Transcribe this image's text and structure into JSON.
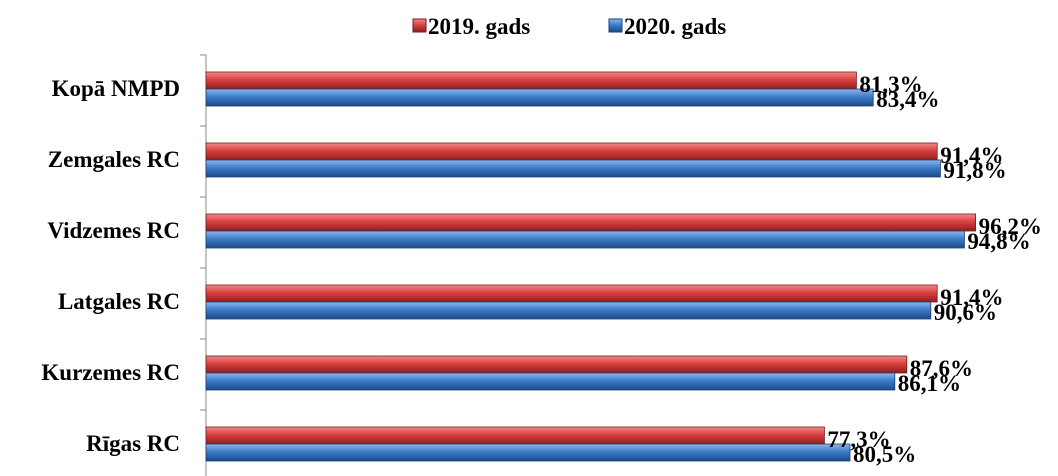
{
  "chart_data": {
    "type": "bar",
    "orientation": "horizontal",
    "categories": [
      "Kopā NMPD",
      "Zemgales RC",
      "Vidzemes RC",
      "Latgales RC",
      "Kurzemes RC",
      "Rīgas RC"
    ],
    "series": [
      {
        "name": "2019. gads",
        "color": "#d23b3b",
        "values": [
          81.3,
          91.4,
          96.2,
          91.4,
          87.6,
          77.3
        ],
        "labels": [
          "81,3%",
          "91,4%",
          "96,2%",
          "91,4%",
          "87,6%",
          "77,3%"
        ]
      },
      {
        "name": "2020. gads",
        "color": "#3a78c7",
        "values": [
          83.4,
          91.8,
          94.8,
          90.6,
          86.1,
          80.5
        ],
        "labels": [
          "83,4%",
          "91,8%",
          "94,8%",
          "90,6%",
          "86,1%",
          "80,5%"
        ]
      }
    ],
    "xlim": [
      0,
      100
    ],
    "unit": "%",
    "legend_position": "top",
    "grid": false,
    "title": "",
    "xlabel": "",
    "ylabel": ""
  }
}
